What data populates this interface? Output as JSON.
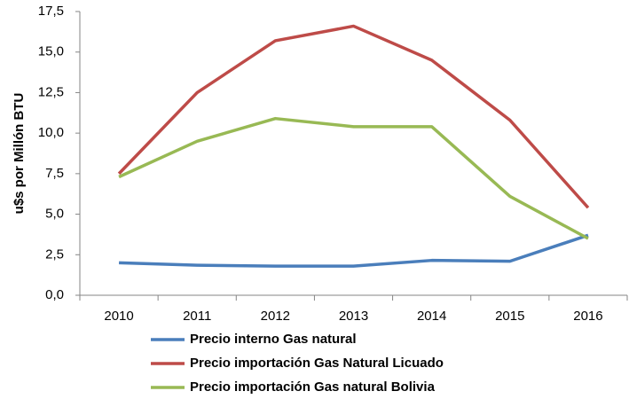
{
  "chart_data": {
    "type": "line",
    "y_label": "u$s por Millón BTU",
    "categories": [
      "2010",
      "2011",
      "2012",
      "2013",
      "2014",
      "2015",
      "2016"
    ],
    "series": [
      {
        "name": "Precio interno Gas natural",
        "color": "#4a7ebb",
        "values": [
          2.0,
          1.85,
          1.8,
          1.8,
          2.15,
          2.1,
          3.7
        ]
      },
      {
        "name": "Precio importación Gas Natural Licuado",
        "color": "#be4b48",
        "values": [
          7.5,
          12.5,
          15.7,
          16.6,
          14.5,
          10.8,
          5.4
        ]
      },
      {
        "name": "Precio importación Gas natural Bolivia",
        "color": "#98b954",
        "values": [
          7.3,
          9.5,
          10.9,
          10.4,
          10.4,
          6.1,
          3.5
        ]
      }
    ],
    "ylim": [
      0,
      17.5
    ],
    "yticks": [
      {
        "value": 0,
        "label": "0,0"
      },
      {
        "value": 2.5,
        "label": "2,5"
      },
      {
        "value": 5,
        "label": "5,0"
      },
      {
        "value": 7.5,
        "label": "7,5"
      },
      {
        "value": 10,
        "label": "10,0"
      },
      {
        "value": 12.5,
        "label": "12,5"
      },
      {
        "value": 15,
        "label": "15,0"
      },
      {
        "value": 17.5,
        "label": "17,5"
      }
    ],
    "grid": false,
    "legend": "bottom"
  }
}
